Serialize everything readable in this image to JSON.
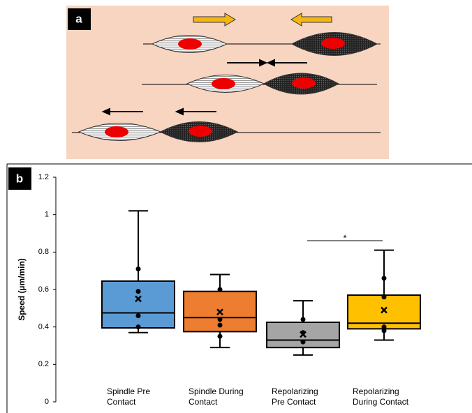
{
  "panel_a": {
    "label": "a"
  },
  "chart_data": {
    "type": "box",
    "panel_label": "b",
    "y_label": "Speed (µm/min)",
    "categories": [
      [
        "Spindle Pre",
        "Contact"
      ],
      [
        "Spindle During",
        "Contact"
      ],
      [
        "Repolarizing",
        "Pre Contact"
      ],
      [
        "Repolarizing",
        "During Contact"
      ]
    ],
    "ylim": [
      0,
      1.2
    ],
    "yticks": [
      0,
      0.2,
      0.4,
      0.6,
      0.8,
      1,
      1.2
    ],
    "series": [
      {
        "color": "#5b9bd5",
        "min": 0.37,
        "q1": 0.395,
        "median": 0.475,
        "q3": 0.645,
        "max": 1.02,
        "mean": 0.55,
        "points": [
          0.71,
          0.59,
          0.46,
          0.4
        ]
      },
      {
        "color": "#ed7d31",
        "min": 0.29,
        "q1": 0.375,
        "median": 0.45,
        "q3": 0.59,
        "max": 0.68,
        "mean": 0.48,
        "points": [
          0.6,
          0.44,
          0.41,
          0.35
        ]
      },
      {
        "color": "#a5a5a5",
        "min": 0.25,
        "q1": 0.29,
        "median": 0.33,
        "q3": 0.425,
        "max": 0.54,
        "mean": 0.36,
        "points": [
          0.44,
          0.37,
          0.32
        ]
      },
      {
        "color": "#ffc000",
        "min": 0.33,
        "q1": 0.39,
        "median": 0.42,
        "q3": 0.57,
        "max": 0.81,
        "mean": 0.49,
        "points": [
          0.66,
          0.56,
          0.4,
          0.38
        ]
      }
    ],
    "annotation": "*"
  }
}
